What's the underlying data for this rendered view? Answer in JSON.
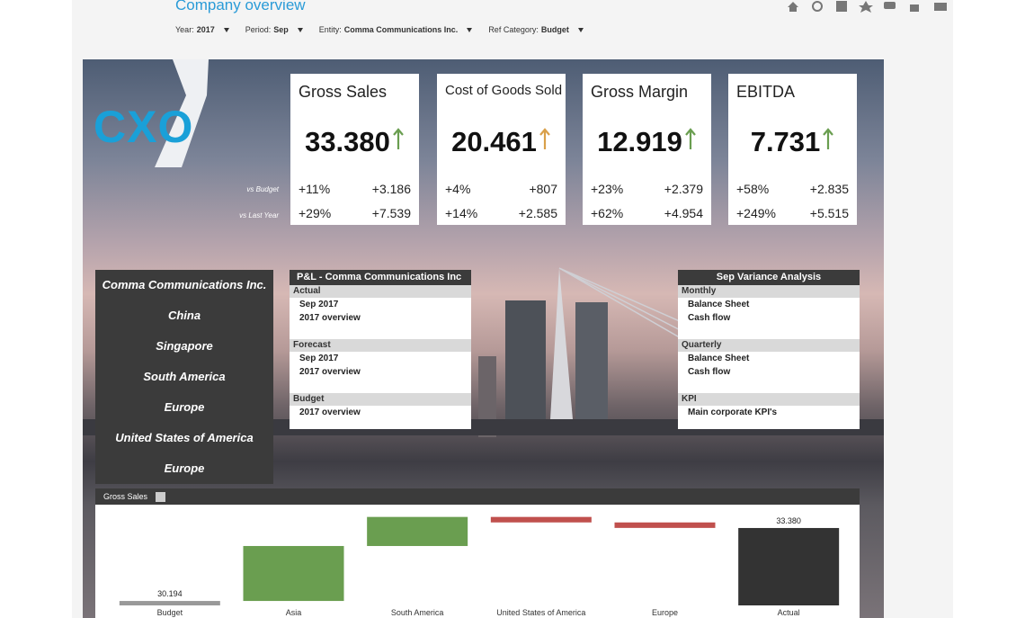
{
  "header": {
    "title": "Company overview",
    "filters": [
      {
        "label": "Year:",
        "value": "2017"
      },
      {
        "label": "Period:",
        "value": "Sep"
      },
      {
        "label": "Entity:",
        "value": "Comma Communications Inc."
      },
      {
        "label": "Ref Category:",
        "value": "Budget"
      }
    ]
  },
  "logo": "CXO",
  "row_labels": [
    "vs Budget",
    "vs Last Year"
  ],
  "kpis": [
    {
      "title": "Gross Sales",
      "value": "33.380",
      "arrow_color": "#6a9e50",
      "rows": [
        [
          "+11%",
          "+3.186"
        ],
        [
          "+29%",
          "+7.539"
        ]
      ]
    },
    {
      "title": "Cost of Goods Sold",
      "value": "20.461",
      "arrow_color": "#d9a04a",
      "rows": [
        [
          "+4%",
          "+807"
        ],
        [
          "+14%",
          "+2.585"
        ]
      ]
    },
    {
      "title": "Gross Margin",
      "value": "12.919",
      "arrow_color": "#6a9e50",
      "rows": [
        [
          "+23%",
          "+2.379"
        ],
        [
          "+62%",
          "+4.954"
        ]
      ]
    },
    {
      "title": "EBITDA",
      "value": "7.731",
      "arrow_color": "#6a9e50",
      "rows": [
        [
          "+58%",
          "+2.835"
        ],
        [
          "+249%",
          "+5.515"
        ]
      ]
    }
  ],
  "entities": [
    "Comma Communications Inc.",
    "China",
    "Singapore",
    "South America",
    "Europe",
    "United States of America",
    "Europe"
  ],
  "pl": {
    "title": "P&L - Comma Communications Inc",
    "sections": [
      {
        "name": "Actual",
        "items": [
          "Sep 2017",
          "2017 overview"
        ]
      },
      {
        "name": "Forecast",
        "items": [
          "Sep 2017",
          "2017 overview"
        ]
      },
      {
        "name": "Budget",
        "items": [
          "2017 overview"
        ]
      }
    ]
  },
  "variance": {
    "title": "Sep Variance Analysis",
    "sections": [
      {
        "name": "Monthly",
        "items": [
          "Balance Sheet",
          "Cash flow"
        ]
      },
      {
        "name": "Quarterly",
        "items": [
          "Balance Sheet",
          "Cash flow"
        ]
      },
      {
        "name": "KPI",
        "items": [
          "Main corporate KPI's"
        ]
      }
    ]
  },
  "chart_data": {
    "type": "waterfall",
    "title": "Gross Sales",
    "categories": [
      "Budget",
      "Asia",
      "South America",
      "United States of America",
      "Europe",
      "Actual"
    ],
    "values": [
      30.194,
      2.4,
      1.27,
      -0.24,
      -0.24,
      33.38
    ],
    "value_labels": [
      "30.194",
      null,
      null,
      null,
      null,
      "33.380"
    ],
    "measures": [
      "total",
      "relative",
      "relative",
      "relative",
      "relative",
      "total"
    ],
    "colors": [
      "#999999",
      "#6a9e50",
      "#6a9e50",
      "#c0504d",
      "#c0504d",
      "#333333"
    ],
    "ylim": [
      30,
      34.4
    ]
  }
}
